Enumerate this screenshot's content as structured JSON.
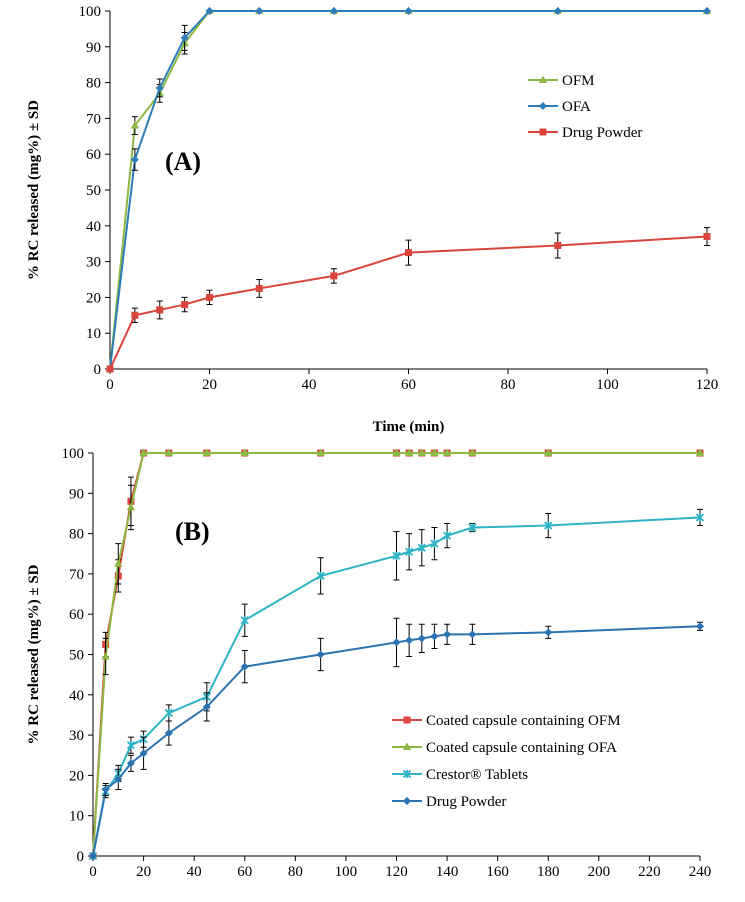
{
  "chart_data": [
    {
      "type": "line",
      "panel_label": "(A)",
      "xlabel": "Time (min)",
      "ylabel": "% RC  released (mg%) ± SD",
      "xlim": [
        0,
        120
      ],
      "ylim": [
        0,
        100
      ],
      "xticks": [
        0,
        20,
        40,
        60,
        80,
        100,
        120
      ],
      "yticks": [
        0,
        10,
        20,
        30,
        40,
        50,
        60,
        70,
        80,
        90,
        100
      ],
      "grid": false,
      "legend_position": "middle-right",
      "series": [
        {
          "name": "OFM",
          "color": "#8db843",
          "marker": "triangle",
          "x": [
            0,
            5,
            10,
            15,
            20,
            30,
            45,
            60,
            90,
            120
          ],
          "y": [
            0,
            68,
            77,
            91,
            100,
            100,
            100,
            100,
            100,
            100
          ],
          "err": [
            0,
            2.5,
            2.5,
            3,
            0,
            0,
            0,
            0,
            0,
            0
          ]
        },
        {
          "name": "OFA",
          "color": "#2e7db8",
          "marker": "diamond",
          "x": [
            0,
            5,
            10,
            15,
            20,
            30,
            45,
            60,
            90,
            120
          ],
          "y": [
            0,
            58.5,
            78.5,
            92.5,
            100,
            100,
            100,
            100,
            100,
            100
          ],
          "err": [
            0,
            3,
            2.5,
            3.5,
            0,
            0,
            0,
            0,
            0,
            0
          ]
        },
        {
          "name": "Drug Powder",
          "color": "#d9453c",
          "marker": "square",
          "x": [
            0,
            5,
            10,
            15,
            20,
            30,
            45,
            60,
            90,
            120
          ],
          "y": [
            0,
            15,
            16.5,
            18,
            20,
            22.5,
            26,
            32.5,
            34.5,
            37
          ],
          "err": [
            0,
            2,
            2.5,
            2,
            2,
            2.5,
            2,
            3.5,
            3.5,
            2.5
          ]
        }
      ]
    },
    {
      "type": "line",
      "panel_label": "(B)",
      "xlabel": "",
      "ylabel": "% RC released (mg%) ± SD",
      "xlim": [
        0,
        240
      ],
      "ylim": [
        0,
        100
      ],
      "xticks": [
        0,
        20,
        40,
        60,
        80,
        100,
        120,
        140,
        160,
        180,
        200,
        220,
        240
      ],
      "yticks": [
        0,
        10,
        20,
        30,
        40,
        50,
        60,
        70,
        80,
        90,
        100
      ],
      "grid": false,
      "legend_position": "bottom-right",
      "series": [
        {
          "name": "Coated capsule containing OFM",
          "color": "#d9453c",
          "marker": "square",
          "x": [
            0,
            5,
            10,
            15,
            20,
            30,
            45,
            60,
            90,
            120,
            125,
            130,
            135,
            140,
            150,
            180,
            240
          ],
          "y": [
            0,
            52.5,
            69.5,
            88,
            100,
            100,
            100,
            100,
            100,
            100,
            100,
            100,
            100,
            100,
            100,
            100,
            100
          ],
          "err": [
            0,
            3,
            4,
            6,
            0,
            0,
            0,
            0,
            0,
            0,
            0,
            0,
            0,
            0,
            0,
            0,
            0
          ]
        },
        {
          "name": "Coated capsule containing OFA",
          "color": "#8db843",
          "marker": "triangle",
          "x": [
            0,
            5,
            10,
            15,
            20,
            30,
            45,
            60,
            90,
            120,
            125,
            130,
            135,
            140,
            150,
            180,
            240
          ],
          "y": [
            0,
            49.5,
            72.5,
            86.5,
            100,
            100,
            100,
            100,
            100,
            100,
            100,
            100,
            100,
            100,
            100,
            100,
            100
          ],
          "err": [
            0,
            4.5,
            5,
            5.5,
            0,
            0,
            0,
            0,
            0,
            0,
            0,
            0,
            0,
            0,
            0,
            0,
            0
          ]
        },
        {
          "name": "Crestor® Tablets",
          "color": "#2fb4c6",
          "marker": "star",
          "x": [
            0,
            5,
            10,
            15,
            20,
            30,
            45,
            60,
            90,
            120,
            125,
            130,
            135,
            140,
            150,
            180,
            240
          ],
          "y": [
            0,
            16,
            20.5,
            27.5,
            29,
            35.5,
            39.5,
            58.5,
            69.5,
            74.5,
            75.5,
            76.5,
            77.5,
            79.5,
            81.5,
            82,
            84
          ],
          "err": [
            0,
            1.5,
            2,
            2,
            2,
            2,
            3.5,
            4,
            4.5,
            6,
            4.5,
            4.5,
            4,
            3,
            1,
            3,
            2
          ]
        },
        {
          "name": "Drug Powder",
          "color": "#2b73b1",
          "marker": "diamond",
          "x": [
            0,
            5,
            10,
            15,
            20,
            30,
            45,
            60,
            90,
            120,
            125,
            130,
            135,
            140,
            150,
            180,
            240
          ],
          "y": [
            0,
            16.5,
            19,
            23,
            25.5,
            30.5,
            37,
            47,
            50,
            53,
            53.5,
            54,
            54.5,
            55,
            55,
            55.5,
            57
          ],
          "err": [
            0,
            1.5,
            2.5,
            2,
            4,
            3,
            3.5,
            4,
            4,
            6,
            4,
            3.5,
            3,
            2.5,
            2.5,
            1.5,
            1
          ]
        }
      ]
    }
  ]
}
